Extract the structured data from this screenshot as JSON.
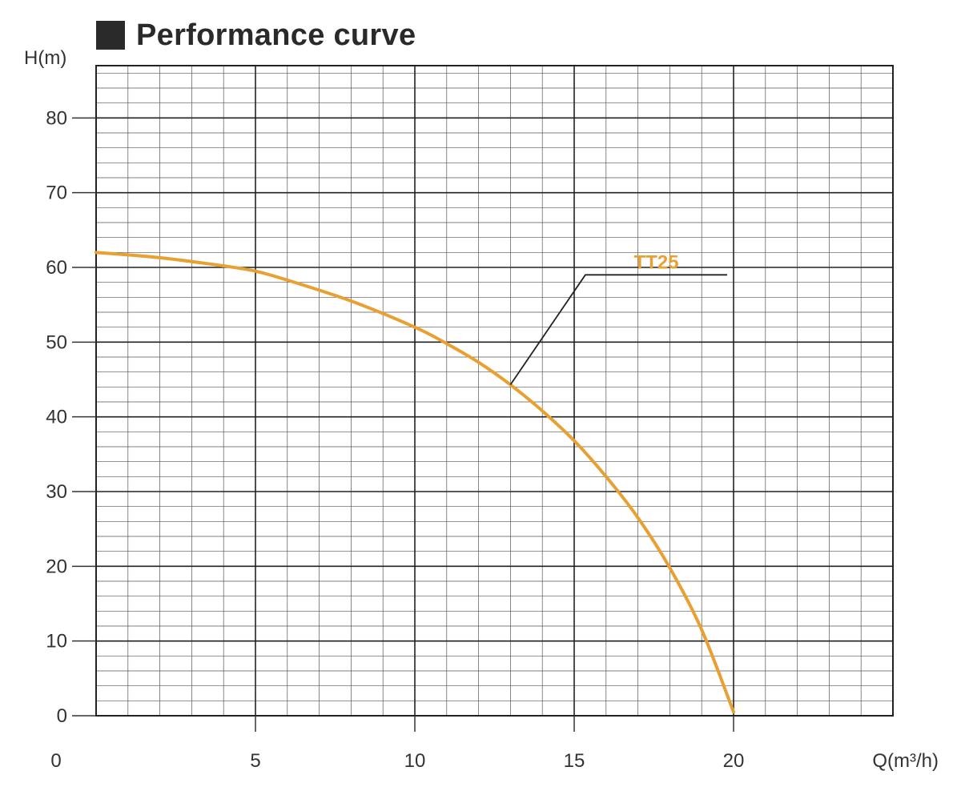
{
  "title": "Performance curve",
  "chart_data": {
    "type": "line",
    "xlabel": "Q(m³/h)",
    "ylabel": "H(m)",
    "xlim": [
      0,
      25
    ],
    "ylim": [
      0,
      87
    ],
    "x_ticks": [
      0,
      5,
      10,
      15,
      20
    ],
    "y_ticks": [
      0,
      10,
      20,
      30,
      40,
      50,
      60,
      70,
      80
    ],
    "grid": true,
    "series": [
      {
        "name": "TT25",
        "color": "#e8a032",
        "x": [
          0,
          2,
          4,
          5,
          6,
          8,
          10,
          11,
          12,
          13,
          14,
          15,
          16,
          17,
          18,
          19,
          20
        ],
        "y": [
          62,
          61.3,
          60.2,
          59.5,
          58.3,
          55.5,
          52,
          49.8,
          47.3,
          44.3,
          40.8,
          36.8,
          32,
          26.5,
          19.8,
          11.5,
          0.5
        ]
      }
    ]
  }
}
